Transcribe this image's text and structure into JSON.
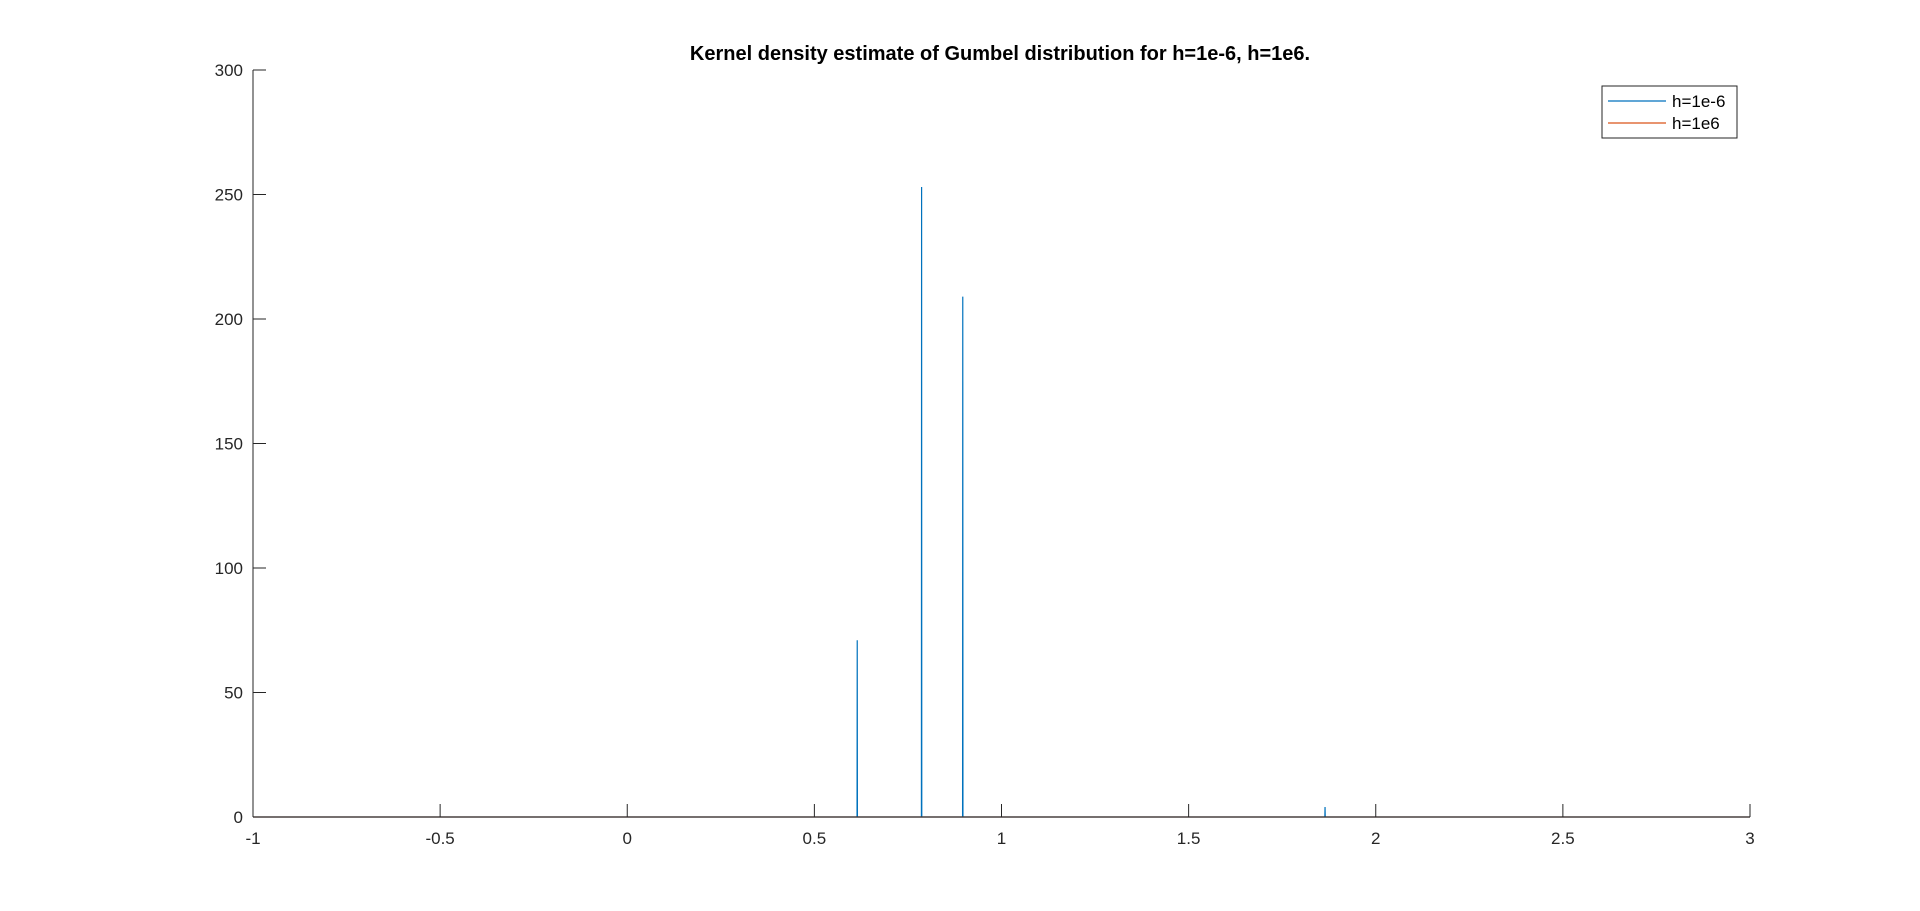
{
  "chart_data": {
    "type": "line",
    "title": "Kernel density estimate of Gumbel distribution for h=1e-6, h=1e6.",
    "xlabel": "",
    "ylabel": "",
    "xlim": [
      -1,
      3
    ],
    "ylim": [
      0,
      300
    ],
    "xticks": [
      -1,
      -0.5,
      0,
      0.5,
      1,
      1.5,
      2,
      2.5,
      3
    ],
    "xtick_labels": [
      "-1",
      "-0.5",
      "0",
      "0.5",
      "1",
      "1.5",
      "2",
      "2.5",
      "3"
    ],
    "yticks": [
      0,
      50,
      100,
      150,
      200,
      250,
      300
    ],
    "ytick_labels": [
      "0",
      "50",
      "100",
      "150",
      "200",
      "250",
      "300"
    ],
    "grid": false,
    "legend_position": "top-right",
    "series": [
      {
        "name": "h=1e-6",
        "color": "#0072BD",
        "x": [
          -1,
          0.614,
          0.6145,
          0.615,
          0.786,
          0.7865,
          0.787,
          0.896,
          0.8965,
          0.897,
          1.864,
          1.8645,
          1.865,
          3
        ],
        "y": [
          0,
          0,
          71,
          0,
          0,
          253,
          0,
          0,
          209,
          0,
          0,
          4,
          0,
          0
        ]
      },
      {
        "name": "h=1e6",
        "color": "#D95319",
        "x": [
          -1,
          3
        ],
        "y": [
          0,
          0
        ]
      }
    ]
  }
}
